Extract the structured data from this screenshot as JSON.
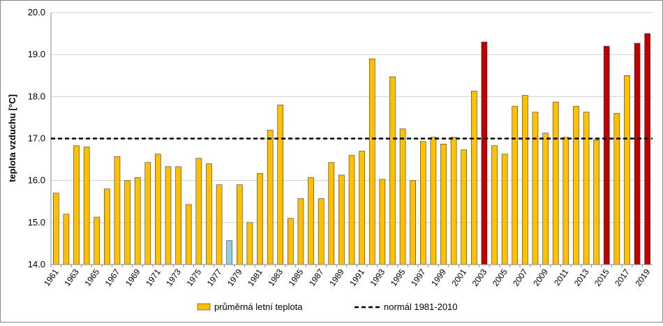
{
  "chart_data": {
    "type": "bar",
    "categories": [
      "1961",
      null,
      "1963",
      null,
      "1965",
      null,
      "1967",
      null,
      "1969",
      null,
      "1971",
      null,
      "1973",
      null,
      "1975",
      null,
      "1977",
      null,
      "1979",
      null,
      "1981",
      null,
      "1983",
      null,
      "1985",
      null,
      "1987",
      null,
      "1989",
      null,
      "1991",
      null,
      "1993",
      null,
      "1995",
      null,
      "1997",
      null,
      "1999",
      null,
      "2001",
      null,
      "2003",
      null,
      "2005",
      null,
      "2007",
      null,
      "2009",
      null,
      "2011",
      null,
      "2013",
      null,
      "2015",
      null,
      "2017",
      null,
      "2019"
    ],
    "series": [
      {
        "name": "průměrná letní teplota",
        "color": "#ffc000",
        "values": [
          15.7,
          15.2,
          16.83,
          16.8,
          15.13,
          15.8,
          16.57,
          16.0,
          16.07,
          16.43,
          16.63,
          16.33,
          16.33,
          15.43,
          16.53,
          16.4,
          15.9,
          14.57,
          15.9,
          15.0,
          16.17,
          17.2,
          17.8,
          15.1,
          15.57,
          16.07,
          15.57,
          16.43,
          16.13,
          16.6,
          16.7,
          18.9,
          16.03,
          18.47,
          17.23,
          16.0,
          16.93,
          17.03,
          16.87,
          17.03,
          16.73,
          18.13,
          19.3,
          16.83,
          16.63,
          17.77,
          18.03,
          17.63,
          17.13,
          17.87,
          17.03,
          17.77,
          17.63,
          16.97,
          19.2,
          17.6,
          18.5,
          19.27,
          19.5
        ],
        "colors": [
          "#ffc000",
          "#ffc000",
          "#ffc000",
          "#ffc000",
          "#ffc000",
          "#ffc000",
          "#ffc000",
          "#ffc000",
          "#ffc000",
          "#ffc000",
          "#ffc000",
          "#ffc000",
          "#ffc000",
          "#ffc000",
          "#ffc000",
          "#ffc000",
          "#ffc000",
          "#92cddc",
          "#ffc000",
          "#ffc000",
          "#ffc000",
          "#ffc000",
          "#ffc000",
          "#ffc000",
          "#ffc000",
          "#ffc000",
          "#ffc000",
          "#ffc000",
          "#ffc000",
          "#ffc000",
          "#ffc000",
          "#ffc000",
          "#ffc000",
          "#ffc000",
          "#ffc000",
          "#ffc000",
          "#ffc000",
          "#ffc000",
          "#ffc000",
          "#ffc000",
          "#ffc000",
          "#ffc000",
          "#c00000",
          "#ffc000",
          "#ffc000",
          "#ffc000",
          "#ffc000",
          "#ffc000",
          "#ffc000",
          "#ffc000",
          "#ffc000",
          "#ffc000",
          "#ffc000",
          "#ffc000",
          "#c00000",
          "#ffc000",
          "#ffc000",
          "#c00000",
          "#c00000"
        ]
      }
    ],
    "reference_line": {
      "name": "normál 1981-2010",
      "value": 17.0,
      "color": "#000000"
    },
    "ylabel": "teplota vzduchu [°C]",
    "ylim": [
      14.0,
      20.0
    ],
    "yticks": [
      {
        "value": 14.0,
        "label": "14.0"
      },
      {
        "value": 15.0,
        "label": "15.0"
      },
      {
        "value": 16.0,
        "label": "16.0"
      },
      {
        "value": 17.0,
        "label": "17.0"
      },
      {
        "value": 18.0,
        "label": "18.0"
      },
      {
        "value": 19.0,
        "label": "19.0"
      },
      {
        "value": 20.0,
        "label": "20.0"
      }
    ],
    "grid": true,
    "legend": "bottom"
  }
}
